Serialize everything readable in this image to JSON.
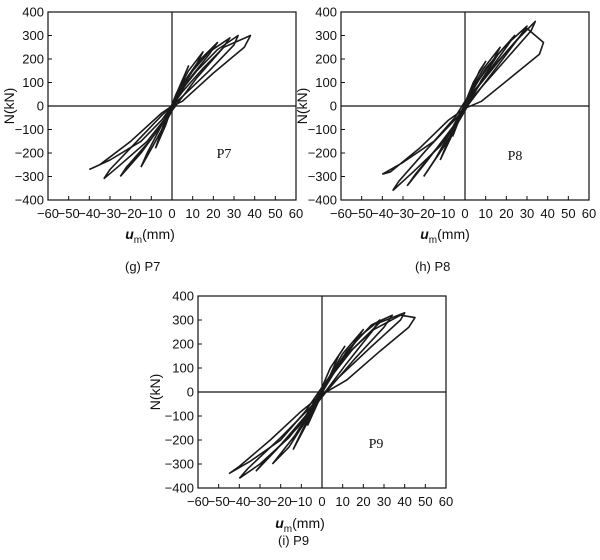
{
  "chart_data": [
    {
      "type": "line",
      "panel_label": "P7",
      "caption": "(g) P7",
      "ylabel": "N(kN)",
      "xlabel_var": "u",
      "xlabel_sub": "m",
      "xlabel_unit": "(mm)",
      "xlim": [
        -60,
        60
      ],
      "ylim": [
        -400,
        400
      ],
      "x_ticks": [
        -60,
        -50,
        -40,
        -30,
        -20,
        -10,
        0,
        10,
        20,
        30,
        40,
        50,
        60
      ],
      "x_tick_labels": [
        "−60",
        "−50",
        "−40",
        "−30",
        "−20",
        "−10",
        "0",
        "10",
        "20",
        "30",
        "40",
        "50",
        "60"
      ],
      "y_ticks": [
        400,
        300,
        200,
        100,
        0,
        -100,
        -200,
        -300,
        -400
      ],
      "y_tick_labels": [
        "400",
        "300",
        "200",
        "100",
        "0",
        "−100",
        "−200",
        "−300",
        "−400"
      ],
      "series": [
        {
          "x": [
            -40,
            -30,
            -15,
            -5,
            0,
            5,
            15,
            25,
            38,
            35,
            20,
            5,
            0,
            -5,
            -20,
            -35,
            -40
          ],
          "y": [
            -270,
            -230,
            -150,
            -60,
            0,
            60,
            160,
            250,
            300,
            250,
            140,
            20,
            0,
            -30,
            -150,
            -250,
            -270
          ]
        },
        {
          "x": [
            -33,
            -25,
            -12,
            -3,
            3,
            12,
            22,
            32,
            30,
            18,
            5,
            -5,
            -18,
            -30,
            -33
          ],
          "y": [
            -310,
            -250,
            -150,
            -50,
            50,
            150,
            240,
            300,
            260,
            150,
            40,
            -40,
            -160,
            -270,
            -310
          ]
        },
        {
          "x": [
            -25,
            -15,
            -5,
            2,
            10,
            18,
            28,
            24,
            12,
            0,
            -10,
            -22,
            -25
          ],
          "y": [
            -300,
            -200,
            -80,
            40,
            150,
            230,
            290,
            240,
            120,
            -20,
            -140,
            -260,
            -300
          ]
        },
        {
          "x": [
            -15,
            -8,
            0,
            6,
            14,
            22,
            18,
            8,
            -2,
            -12,
            -15
          ],
          "y": [
            -260,
            -150,
            -20,
            100,
            200,
            270,
            220,
            110,
            -30,
            -200,
            -260
          ]
        },
        {
          "x": [
            -8,
            -3,
            2,
            8,
            15,
            12,
            4,
            -3,
            -8
          ],
          "y": [
            -180,
            -80,
            50,
            150,
            230,
            180,
            80,
            -50,
            -180
          ]
        },
        {
          "x": [
            -4,
            0,
            4,
            8,
            6,
            1,
            -4
          ],
          "y": [
            -100,
            0,
            90,
            170,
            130,
            30,
            -100
          ]
        }
      ]
    },
    {
      "type": "line",
      "panel_label": "P8",
      "caption": "(h) P8",
      "ylabel": "N(kN)",
      "xlabel_var": "u",
      "xlabel_sub": "m",
      "xlabel_unit": "(mm)",
      "xlim": [
        -60,
        60
      ],
      "ylim": [
        -400,
        400
      ],
      "x_ticks": [
        -60,
        -50,
        -40,
        -30,
        -20,
        -10,
        0,
        10,
        20,
        30,
        40,
        50,
        60
      ],
      "x_tick_labels": [
        "−60",
        "−50",
        "−40",
        "−30",
        "−20",
        "−10",
        "0",
        "10",
        "20",
        "30",
        "40",
        "50",
        "60"
      ],
      "y_ticks": [
        400,
        300,
        200,
        100,
        0,
        -100,
        -200,
        -300,
        -400
      ],
      "y_tick_labels": [
        "400",
        "300",
        "200",
        "100",
        "0",
        "−100",
        "−200",
        "−300",
        "−400"
      ],
      "series": [
        {
          "x": [
            -40,
            -30,
            -15,
            -5,
            0,
            8,
            20,
            30,
            38,
            36,
            22,
            8,
            0,
            -8,
            -22,
            -36,
            -40
          ],
          "y": [
            -290,
            -240,
            -150,
            -50,
            20,
            100,
            230,
            330,
            270,
            220,
            120,
            20,
            -10,
            -60,
            -180,
            -280,
            -290
          ]
        },
        {
          "x": [
            -35,
            -25,
            -12,
            -3,
            4,
            14,
            25,
            34,
            32,
            20,
            6,
            -4,
            -18,
            -32,
            -35
          ],
          "y": [
            -360,
            -280,
            -170,
            -60,
            60,
            170,
            280,
            360,
            320,
            200,
            60,
            -50,
            -180,
            -320,
            -360
          ]
        },
        {
          "x": [
            -28,
            -18,
            -6,
            2,
            10,
            20,
            30,
            26,
            14,
            2,
            -10,
            -24,
            -28
          ],
          "y": [
            -340,
            -230,
            -90,
            40,
            160,
            260,
            340,
            290,
            150,
            10,
            -140,
            -290,
            -340
          ]
        },
        {
          "x": [
            -20,
            -10,
            0,
            8,
            16,
            24,
            20,
            10,
            -2,
            -14,
            -20
          ],
          "y": [
            -300,
            -170,
            -20,
            110,
            220,
            300,
            250,
            130,
            -30,
            -220,
            -300
          ]
        },
        {
          "x": [
            -12,
            -5,
            2,
            9,
            17,
            14,
            5,
            -4,
            -12
          ],
          "y": [
            -230,
            -100,
            50,
            160,
            250,
            200,
            90,
            -60,
            -230
          ]
        },
        {
          "x": [
            -6,
            -1,
            4,
            10,
            7,
            1,
            -6
          ],
          "y": [
            -130,
            -10,
            100,
            190,
            150,
            30,
            -130
          ]
        }
      ]
    },
    {
      "type": "line",
      "panel_label": "P9",
      "caption": "(i) P9",
      "ylabel": "N(kN)",
      "xlabel_var": "u",
      "xlabel_sub": "m",
      "xlabel_unit": "(mm)",
      "xlim": [
        -60,
        60
      ],
      "ylim": [
        -400,
        400
      ],
      "x_ticks": [
        -60,
        -50,
        -40,
        -30,
        -20,
        -10,
        0,
        10,
        20,
        30,
        40,
        50,
        60
      ],
      "x_tick_labels": [
        "−60",
        "−50",
        "−40",
        "−30",
        "−20",
        "−10",
        "0",
        "10",
        "20",
        "30",
        "40",
        "50",
        "60"
      ],
      "y_ticks": [
        400,
        300,
        200,
        100,
        0,
        -100,
        -200,
        -300,
        -400
      ],
      "y_tick_labels": [
        "400",
        "300",
        "200",
        "100",
        "0",
        "−100",
        "−200",
        "−300",
        "−400"
      ],
      "series": [
        {
          "x": [
            -45,
            -35,
            -20,
            -8,
            0,
            10,
            25,
            38,
            45,
            42,
            28,
            12,
            0,
            -10,
            -25,
            -40,
            -45
          ],
          "y": [
            -340,
            -290,
            -200,
            -80,
            20,
            140,
            260,
            320,
            310,
            270,
            170,
            50,
            -10,
            -80,
            -200,
            -310,
            -340
          ]
        },
        {
          "x": [
            -40,
            -30,
            -16,
            -5,
            4,
            15,
            28,
            40,
            38,
            24,
            8,
            -4,
            -20,
            -36,
            -40
          ],
          "y": [
            -360,
            -300,
            -190,
            -70,
            60,
            180,
            290,
            330,
            300,
            190,
            60,
            -50,
            -190,
            -320,
            -360
          ]
        },
        {
          "x": [
            -32,
            -22,
            -8,
            2,
            12,
            24,
            34,
            30,
            16,
            2,
            -12,
            -28,
            -32
          ],
          "y": [
            -330,
            -240,
            -100,
            40,
            170,
            280,
            320,
            270,
            140,
            0,
            -150,
            -290,
            -330
          ]
        },
        {
          "x": [
            -24,
            -13,
            -2,
            8,
            18,
            28,
            24,
            12,
            -2,
            -16,
            -24
          ],
          "y": [
            -300,
            -180,
            -30,
            110,
            230,
            300,
            250,
            120,
            -40,
            -230,
            -300
          ]
        },
        {
          "x": [
            -14,
            -6,
            2,
            10,
            20,
            16,
            6,
            -4,
            -14
          ],
          "y": [
            -240,
            -110,
            40,
            160,
            260,
            210,
            90,
            -60,
            -240
          ]
        },
        {
          "x": [
            -7,
            -2,
            4,
            11,
            8,
            2,
            -7
          ],
          "y": [
            -140,
            -20,
            100,
            190,
            150,
            30,
            -140
          ]
        }
      ]
    }
  ]
}
